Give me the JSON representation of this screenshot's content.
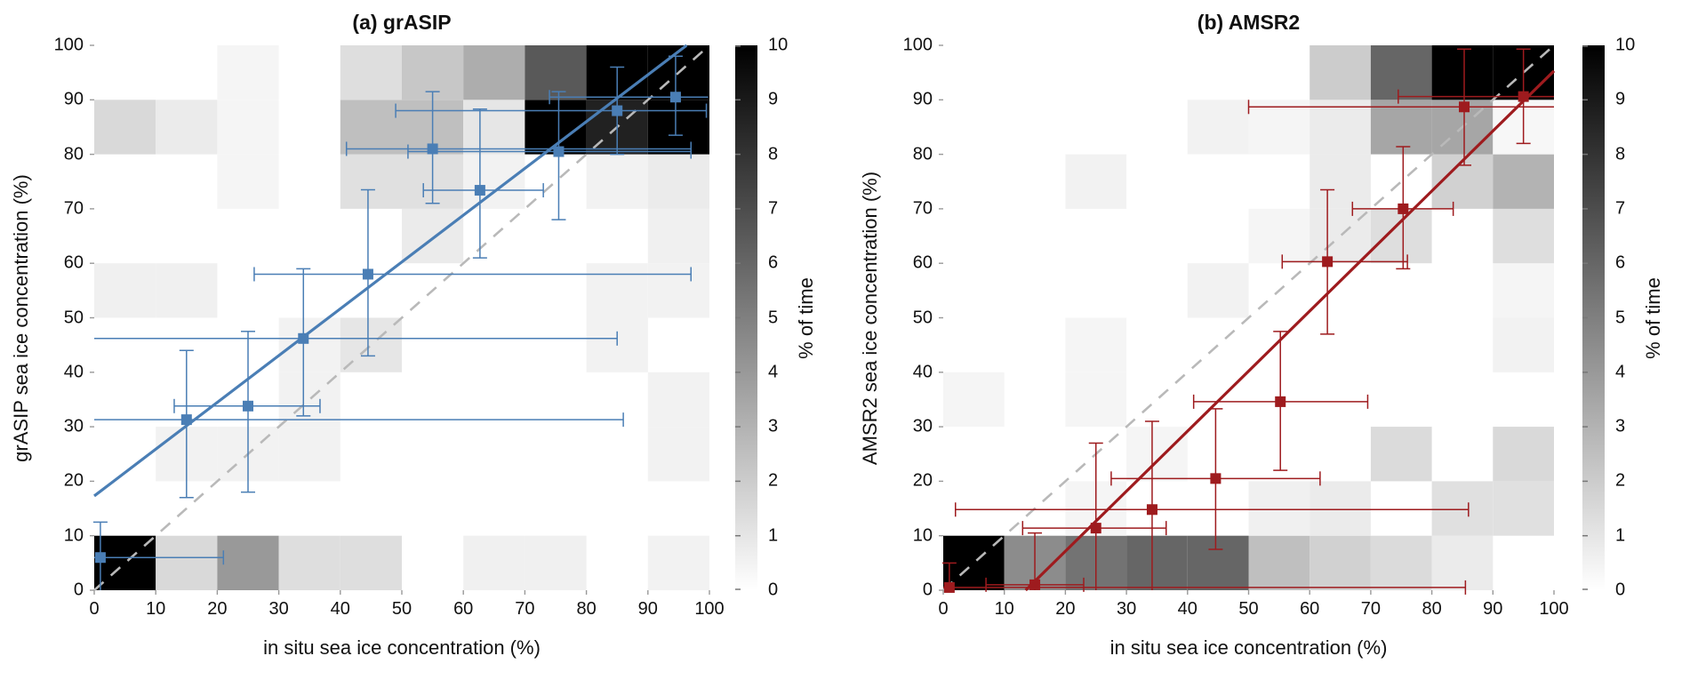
{
  "figure": {
    "background": "#ffffff",
    "identity_line_color": "#b9b9b9",
    "colorbar": {
      "label": "% of time",
      "ticks": [
        0,
        1,
        2,
        3,
        4,
        5,
        6,
        7,
        8,
        9,
        10
      ],
      "min": 0,
      "max": 10,
      "low_color": "#ffffff",
      "high_color": "#000000"
    }
  },
  "chart_data": [
    {
      "type": "heatmap",
      "panel": "a",
      "title": "(a) grASIP",
      "xlabel": "in situ sea ice concentration (%)",
      "ylabel": "grASIP sea ice concentration (%)",
      "xlim": [
        0,
        100
      ],
      "ylim": [
        0,
        100
      ],
      "xticks": [
        0,
        10,
        20,
        30,
        40,
        50,
        60,
        70,
        80,
        90,
        100
      ],
      "yticks": [
        0,
        10,
        20,
        30,
        40,
        50,
        60,
        70,
        80,
        90,
        100
      ],
      "grid": false,
      "accent_color": "#4a7eb5",
      "bin_size": 10,
      "cells_ij_value": [
        [
          0,
          0,
          10
        ],
        [
          1,
          0,
          1.5
        ],
        [
          2,
          0,
          4
        ],
        [
          3,
          0,
          1.3
        ],
        [
          4,
          0,
          1.3
        ],
        [
          6,
          0,
          0.6
        ],
        [
          7,
          0,
          0.6
        ],
        [
          9,
          0,
          0.5
        ],
        [
          1,
          2,
          0.5
        ],
        [
          2,
          2,
          0.5
        ],
        [
          3,
          2,
          0.5
        ],
        [
          9,
          2,
          0.5
        ],
        [
          3,
          3,
          0.5
        ],
        [
          9,
          3,
          0.5
        ],
        [
          3,
          4,
          0.5
        ],
        [
          4,
          4,
          1.0
        ],
        [
          8,
          4,
          0.5
        ],
        [
          0,
          5,
          0.6
        ],
        [
          1,
          5,
          0.6
        ],
        [
          8,
          5,
          0.5
        ],
        [
          9,
          5,
          0.5
        ],
        [
          5,
          6,
          0.8
        ],
        [
          9,
          6,
          0.6
        ],
        [
          2,
          7,
          0.4
        ],
        [
          4,
          7,
          1.2
        ],
        [
          5,
          7,
          1.2
        ],
        [
          6,
          7,
          0.5
        ],
        [
          8,
          7,
          0.5
        ],
        [
          9,
          7,
          0.8
        ],
        [
          0,
          8,
          1.5
        ],
        [
          1,
          8,
          0.8
        ],
        [
          2,
          8,
          0.4
        ],
        [
          4,
          8,
          2.5
        ],
        [
          5,
          8,
          2.5
        ],
        [
          6,
          8,
          1.0
        ],
        [
          7,
          8,
          10
        ],
        [
          8,
          8,
          8.7
        ],
        [
          9,
          8,
          10
        ],
        [
          2,
          9,
          0.4
        ],
        [
          4,
          9,
          1.3
        ],
        [
          5,
          9,
          2.2
        ],
        [
          6,
          9,
          3.2
        ],
        [
          7,
          9,
          6.5
        ],
        [
          8,
          9,
          10
        ],
        [
          9,
          9,
          10
        ]
      ],
      "points_x_y_xlo_xhi_ylo_yhi": [
        [
          1,
          6,
          0,
          21,
          0,
          12.5
        ],
        [
          15,
          31.3,
          0,
          86,
          17,
          44
        ],
        [
          25,
          33.8,
          13,
          36.7,
          18,
          47.5
        ],
        [
          34,
          46.2,
          0,
          85,
          32,
          59
        ],
        [
          44.5,
          58,
          26,
          97,
          43,
          73.5
        ],
        [
          55,
          81,
          41,
          97,
          71,
          91.5
        ],
        [
          62.7,
          73.4,
          53.5,
          73,
          61,
          88.3
        ],
        [
          75.5,
          80.5,
          51,
          97,
          68,
          91.5
        ],
        [
          85,
          88,
          49,
          99.5,
          80,
          96
        ],
        [
          94.5,
          90.5,
          74,
          99.8,
          83.5,
          98
        ]
      ],
      "fit_line": {
        "x1": 0,
        "y1": 17.3,
        "x2": 96.3,
        "y2": 100
      },
      "identity_line": {
        "x1": 0,
        "y1": 0,
        "x2": 100,
        "y2": 100
      }
    },
    {
      "type": "heatmap",
      "panel": "b",
      "title": "(b) AMSR2",
      "xlabel": "in situ sea ice concentration (%)",
      "ylabel": "AMSR2 sea ice concentration (%)",
      "xlim": [
        0,
        100
      ],
      "ylim": [
        0,
        100
      ],
      "xticks": [
        0,
        10,
        20,
        30,
        40,
        50,
        60,
        70,
        80,
        90,
        100
      ],
      "yticks": [
        0,
        10,
        20,
        30,
        40,
        50,
        60,
        70,
        80,
        90,
        100
      ],
      "grid": false,
      "accent_color": "#9e1b1e",
      "bin_size": 10,
      "cells_ij_value": [
        [
          0,
          0,
          10
        ],
        [
          1,
          0,
          4.5
        ],
        [
          2,
          0,
          5.5
        ],
        [
          3,
          0,
          6
        ],
        [
          4,
          0,
          6
        ],
        [
          5,
          0,
          2.5
        ],
        [
          6,
          0,
          1.8
        ],
        [
          7,
          0,
          1.4
        ],
        [
          8,
          0,
          0.8
        ],
        [
          2,
          1,
          0.4
        ],
        [
          5,
          1,
          0.6
        ],
        [
          6,
          1,
          0.8
        ],
        [
          8,
          1,
          1.2
        ],
        [
          9,
          1,
          1.2
        ],
        [
          3,
          2,
          0.4
        ],
        [
          7,
          2,
          1.4
        ],
        [
          9,
          2,
          1.5
        ],
        [
          0,
          3,
          0.4
        ],
        [
          2,
          3,
          0.4
        ],
        [
          2,
          4,
          0.4
        ],
        [
          9,
          4,
          0.5
        ],
        [
          4,
          5,
          0.5
        ],
        [
          9,
          5,
          0.4
        ],
        [
          5,
          6,
          0.4
        ],
        [
          6,
          6,
          0.8
        ],
        [
          7,
          6,
          1.3
        ],
        [
          9,
          6,
          1.3
        ],
        [
          2,
          7,
          0.5
        ],
        [
          6,
          7,
          0.8
        ],
        [
          8,
          7,
          1.8
        ],
        [
          9,
          7,
          3
        ],
        [
          4,
          8,
          0.5
        ],
        [
          5,
          8,
          0.4
        ],
        [
          6,
          8,
          0.8
        ],
        [
          7,
          8,
          3.5
        ],
        [
          8,
          8,
          3.5
        ],
        [
          9,
          8,
          0.3
        ],
        [
          6,
          9,
          2
        ],
        [
          7,
          9,
          6
        ],
        [
          8,
          9,
          10
        ],
        [
          9,
          9,
          10
        ]
      ],
      "points_x_y_xlo_xhi_ylo_yhi": [
        [
          1,
          0.5,
          0,
          85.5,
          0,
          5
        ],
        [
          15,
          1,
          7,
          23,
          0,
          10.5
        ],
        [
          25,
          11.4,
          13,
          36.5,
          0,
          27
        ],
        [
          34.2,
          14.8,
          2,
          86,
          0,
          31
        ],
        [
          44.6,
          20.5,
          27.5,
          61.7,
          7.5,
          33.3
        ],
        [
          55.2,
          34.6,
          41,
          69.5,
          22,
          47.5
        ],
        [
          62.9,
          60.3,
          55.5,
          76,
          47,
          73.5
        ],
        [
          75.3,
          70,
          67,
          83.5,
          59,
          81.4
        ],
        [
          85.3,
          88.7,
          50,
          100,
          78,
          99.3
        ],
        [
          95,
          90.6,
          74.5,
          100,
          82,
          99.3
        ]
      ],
      "fit_line": {
        "x1": 13.5,
        "y1": 0,
        "x2": 100,
        "y2": 95.3
      },
      "identity_line": {
        "x1": 0,
        "y1": 0,
        "x2": 100,
        "y2": 100
      }
    }
  ]
}
